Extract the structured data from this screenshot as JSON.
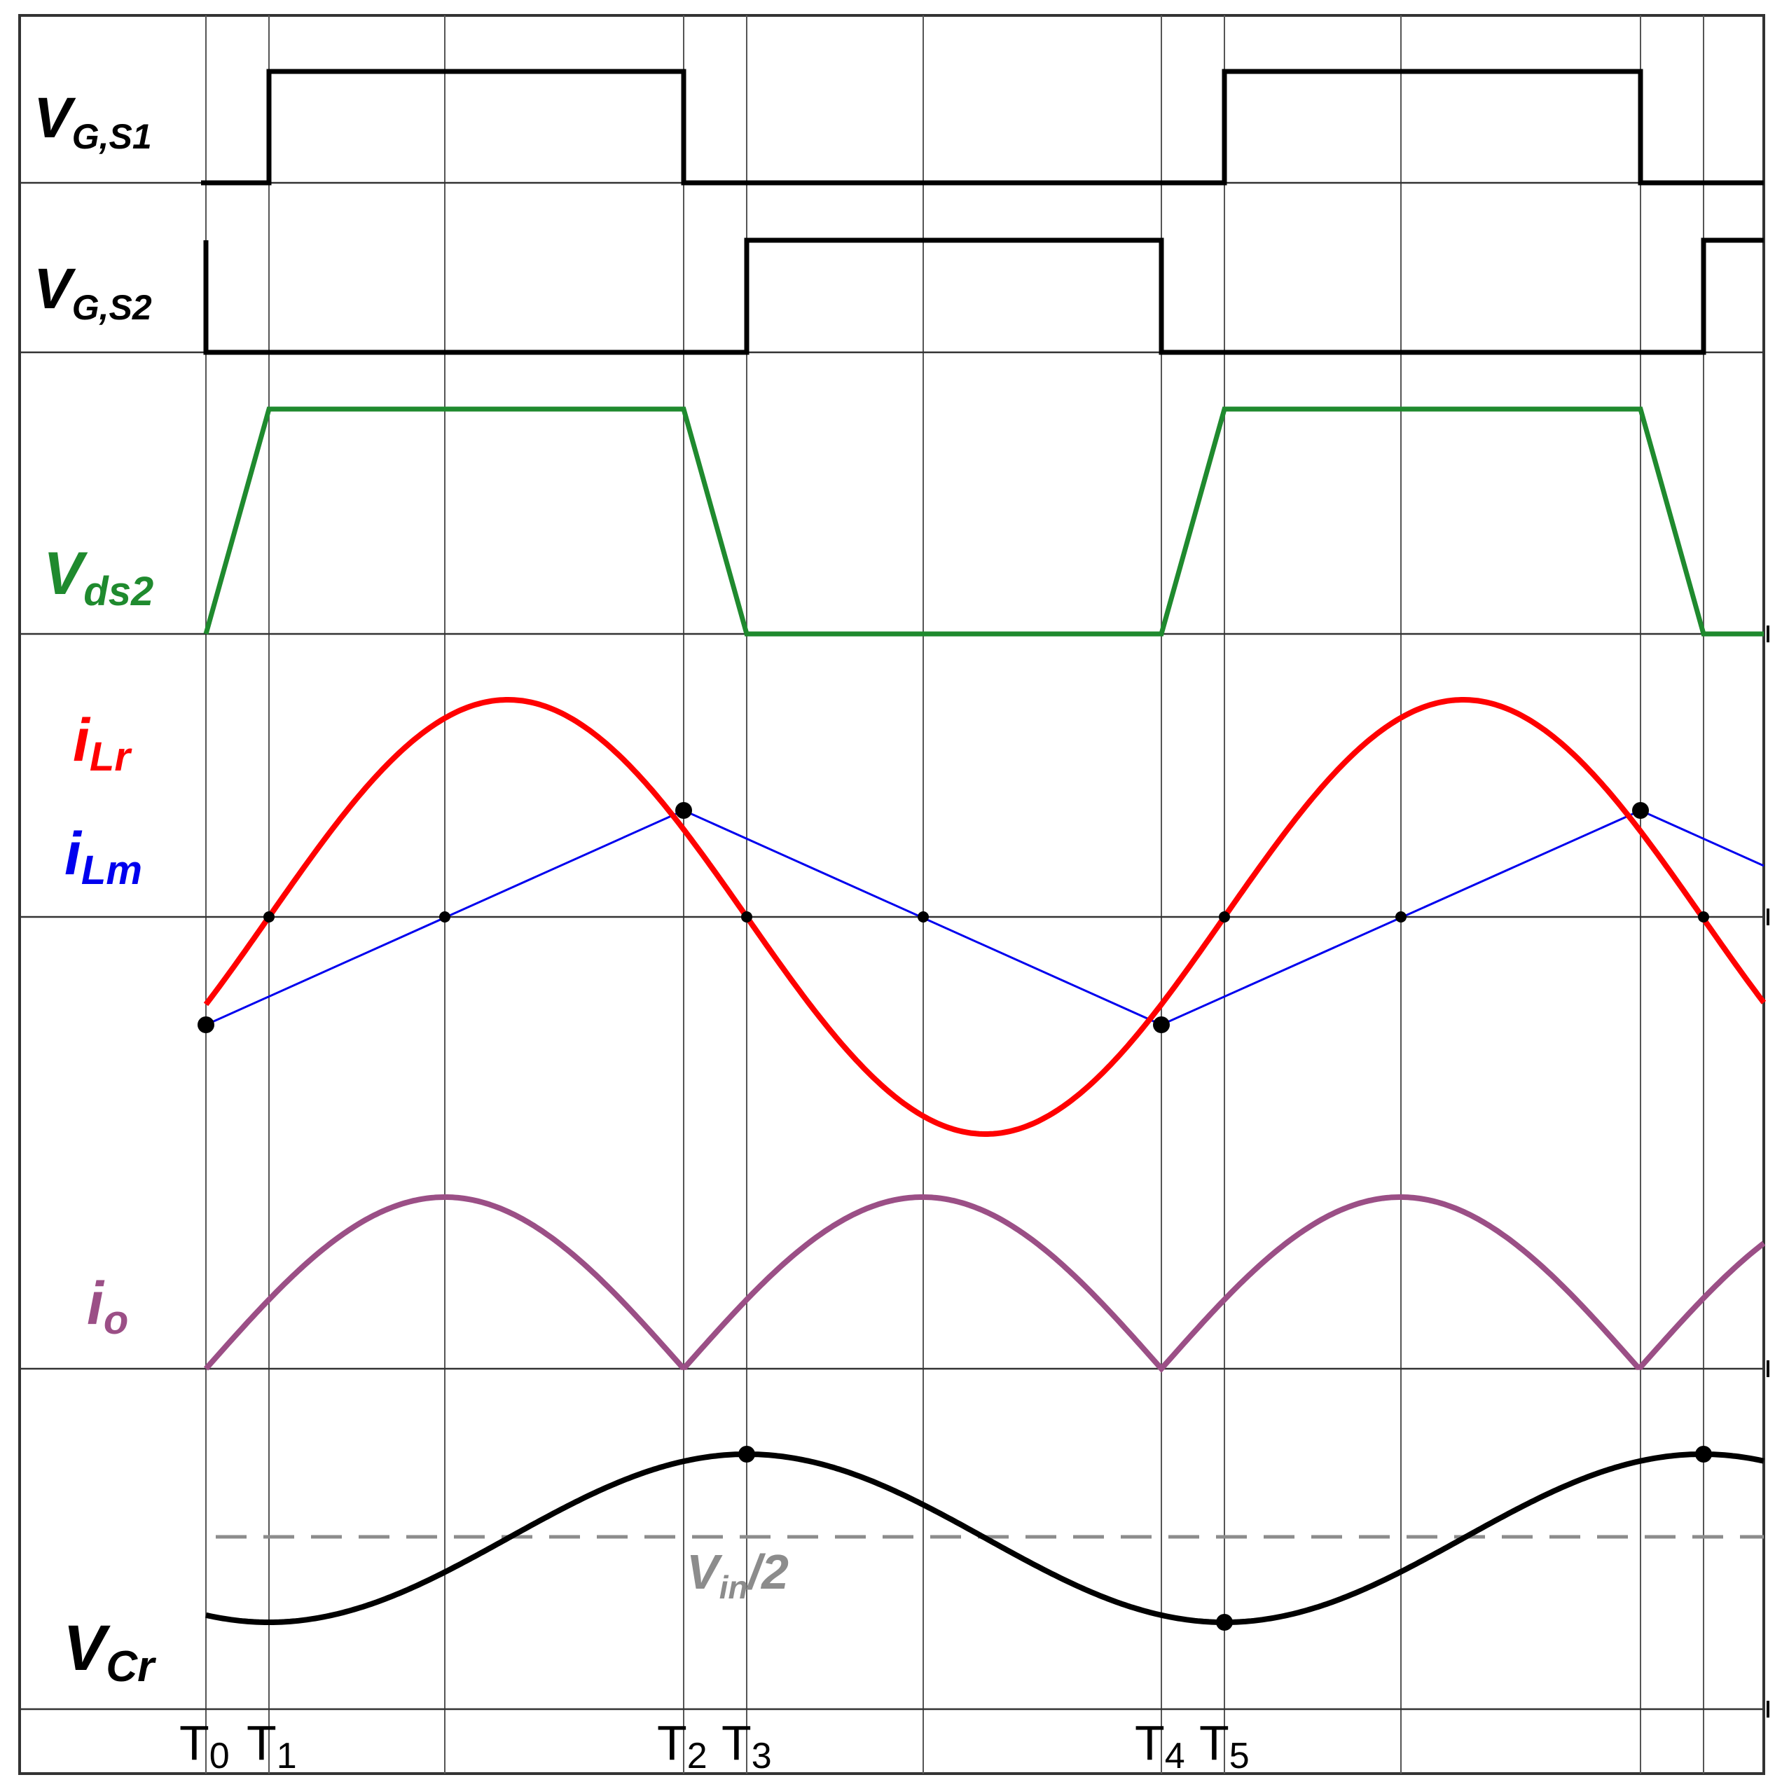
{
  "colors": {
    "gate": "#000000",
    "vds2": "#1f8a2e",
    "iLr": "#ff0000",
    "iLm": "#0000ee",
    "io": "#9b4f86",
    "vcr": "#000000",
    "vin_half": "#8c8c8c",
    "grid": "#555555"
  },
  "labels": {
    "vgs1": {
      "main": "V",
      "sub": "G,S1"
    },
    "vgs2": {
      "main": "V",
      "sub": "G,S2"
    },
    "vds2": {
      "main": "V",
      "sub": "ds2"
    },
    "iLr": {
      "main": "i",
      "sub": "Lr"
    },
    "iLm": {
      "main": "i",
      "sub": "Lm"
    },
    "io": {
      "main": "i",
      "sub": "o"
    },
    "vcr": {
      "main": "V",
      "sub": "Cr"
    },
    "vin_half": {
      "main": "V",
      "sub": "in",
      "tail": "/2"
    }
  },
  "time_markers": [
    {
      "main": "T",
      "sub": "0"
    },
    {
      "main": "T",
      "sub": "1"
    },
    {
      "main": "T",
      "sub": "2"
    },
    {
      "main": "T",
      "sub": "3"
    },
    {
      "main": "T",
      "sub": "4"
    },
    {
      "main": "T",
      "sub": "5"
    }
  ]
}
